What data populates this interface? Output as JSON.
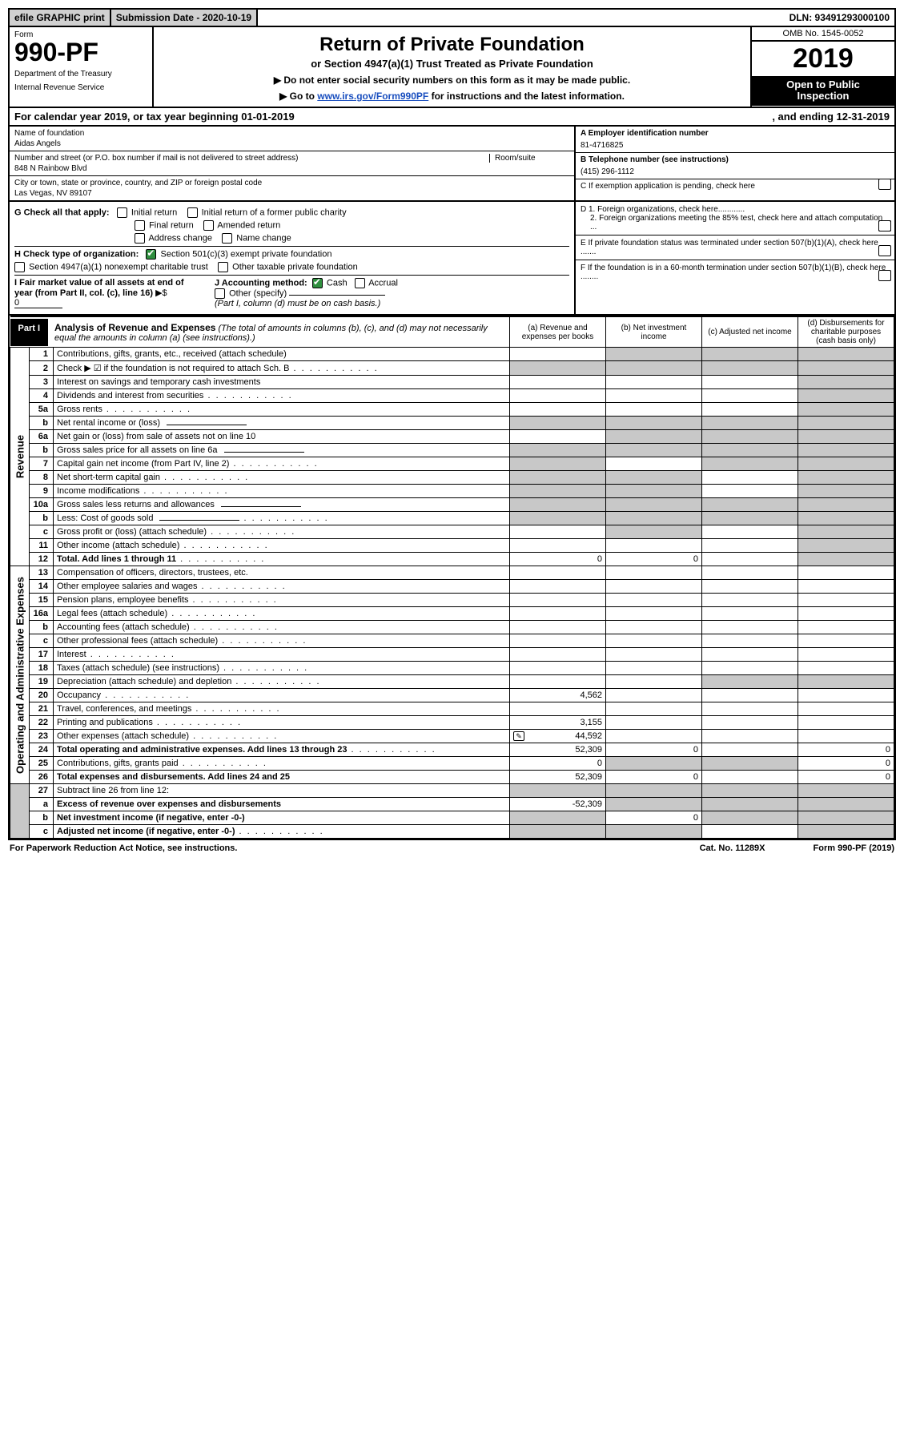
{
  "colors": {
    "text": "#000000",
    "bg": "#ffffff",
    "shade": "#c8c8c8",
    "header_shade": "#d0d0d0",
    "black": "#000000",
    "link": "#1a4fbf",
    "check_green": "#2f8f3f"
  },
  "top_strip": {
    "efile": "efile GRAPHIC print",
    "submission": "Submission Date - 2020-10-19",
    "dln": "DLN: 93491293000100"
  },
  "header": {
    "form_label": "Form",
    "form_number": "990-PF",
    "dept1": "Department of the Treasury",
    "dept2": "Internal Revenue Service",
    "title": "Return of Private Foundation",
    "subtitle": "or Section 4947(a)(1) Trust Treated as Private Foundation",
    "note1": "▶ Do not enter social security numbers on this form as it may be made public.",
    "note2_pre": "▶ Go to ",
    "note2_link": "www.irs.gov/Form990PF",
    "note2_post": " for instructions and the latest information.",
    "omb": "OMB No. 1545-0052",
    "year": "2019",
    "open1": "Open to Public",
    "open2": "Inspection"
  },
  "calyear": {
    "left": "For calendar year 2019, or tax year beginning 01-01-2019",
    "right": ", and ending 12-31-2019"
  },
  "info": {
    "name_label": "Name of foundation",
    "name": "Aidas Angels",
    "addr_label": "Number and street (or P.O. box number if mail is not delivered to street address)",
    "addr": "848 N Rainbow Blvd",
    "room_label": "Room/suite",
    "city_label": "City or town, state or province, country, and ZIP or foreign postal code",
    "city": "Las Vegas, NV  89107",
    "A_label": "A Employer identification number",
    "A": "81-4716825",
    "B_label": "B Telephone number (see instructions)",
    "B": "(415) 296-1112",
    "C": "C If exemption application is pending, check here",
    "D1": "D 1. Foreign organizations, check here............",
    "D2": "2. Foreign organizations meeting the 85% test, check here and attach computation ...",
    "E": "E  If private foundation status was terminated under section 507(b)(1)(A), check here .......",
    "F": "F  If the foundation is in a 60-month termination under section 507(b)(1)(B), check here ........"
  },
  "G": {
    "label": "G Check all that apply:",
    "initial": "Initial return",
    "initial_former": "Initial return of a former public charity",
    "final": "Final return",
    "amended": "Amended return",
    "addr_change": "Address change",
    "name_change": "Name change"
  },
  "H": {
    "label": "H Check type of organization:",
    "s501": "Section 501(c)(3) exempt private foundation",
    "s501_checked": true,
    "s4947": "Section 4947(a)(1) nonexempt charitable trust",
    "other_tax": "Other taxable private foundation"
  },
  "I": {
    "label": "I Fair market value of all assets at end of year (from Part II, col. (c), line 16)",
    "val_prefix": "▶$",
    "val": "0"
  },
  "J": {
    "label": "J Accounting method:",
    "cash": "Cash",
    "cash_checked": true,
    "accrual": "Accrual",
    "other": "Other (specify)",
    "note": "(Part I, column (d) must be on cash basis.)"
  },
  "part1": {
    "label": "Part I",
    "title": "Analysis of Revenue and Expenses",
    "note": "(The total of amounts in columns (b), (c), and (d) may not necessarily equal the amounts in column (a) (see instructions).)",
    "col_a": "(a)  Revenue and expenses per books",
    "col_b": "(b)  Net investment income",
    "col_c": "(c)  Adjusted net income",
    "col_d": "(d)  Disbursements for charitable purposes (cash basis only)"
  },
  "sections": {
    "revenue": "Revenue",
    "expenses": "Operating and Administrative Expenses"
  },
  "rows": [
    {
      "n": "1",
      "d": "Contributions, gifts, grants, etc., received (attach schedule)",
      "a": "",
      "b": "s",
      "c": "s",
      "dd": "s"
    },
    {
      "n": "2",
      "d": "Check ▶ ☑ if the foundation is not required to attach Sch. B",
      "a": "s",
      "b": "s",
      "c": "s",
      "dd": "s",
      "dots": true
    },
    {
      "n": "3",
      "d": "Interest on savings and temporary cash investments",
      "a": "",
      "b": "",
      "c": "",
      "dd": "s"
    },
    {
      "n": "4",
      "d": "Dividends and interest from securities",
      "a": "",
      "b": "",
      "c": "",
      "dd": "s",
      "dots": true
    },
    {
      "n": "5a",
      "d": "Gross rents",
      "a": "",
      "b": "",
      "c": "",
      "dd": "s",
      "dots": true
    },
    {
      "n": "b",
      "d": "Net rental income or (loss)",
      "a": "s",
      "b": "s",
      "c": "s",
      "dd": "s",
      "line": true
    },
    {
      "n": "6a",
      "d": "Net gain or (loss) from sale of assets not on line 10",
      "a": "",
      "b": "s",
      "c": "s",
      "dd": "s"
    },
    {
      "n": "b",
      "d": "Gross sales price for all assets on line 6a",
      "a": "s",
      "b": "s",
      "c": "s",
      "dd": "s",
      "line": true
    },
    {
      "n": "7",
      "d": "Capital gain net income (from Part IV, line 2)",
      "a": "s",
      "b": "",
      "c": "s",
      "dd": "s",
      "dots": true
    },
    {
      "n": "8",
      "d": "Net short-term capital gain",
      "a": "s",
      "b": "s",
      "c": "",
      "dd": "s",
      "dots": true
    },
    {
      "n": "9",
      "d": "Income modifications",
      "a": "s",
      "b": "s",
      "c": "",
      "dd": "s",
      "dots": true
    },
    {
      "n": "10a",
      "d": "Gross sales less returns and allowances",
      "a": "s",
      "b": "s",
      "c": "s",
      "dd": "s",
      "line": true
    },
    {
      "n": "b",
      "d": "Less: Cost of goods sold",
      "a": "s",
      "b": "s",
      "c": "s",
      "dd": "s",
      "line": true,
      "dots": true
    },
    {
      "n": "c",
      "d": "Gross profit or (loss) (attach schedule)",
      "a": "",
      "b": "s",
      "c": "",
      "dd": "s",
      "dots": true
    },
    {
      "n": "11",
      "d": "Other income (attach schedule)",
      "a": "",
      "b": "",
      "c": "",
      "dd": "s",
      "dots": true
    },
    {
      "n": "12",
      "d": "Total. Add lines 1 through 11",
      "a": "0",
      "b": "0",
      "c": "",
      "dd": "s",
      "bold": true,
      "dots": true
    }
  ],
  "exp_rows": [
    {
      "n": "13",
      "d": "Compensation of officers, directors, trustees, etc.",
      "a": "",
      "b": "",
      "c": "",
      "dd": ""
    },
    {
      "n": "14",
      "d": "Other employee salaries and wages",
      "a": "",
      "b": "",
      "c": "",
      "dd": "",
      "dots": true
    },
    {
      "n": "15",
      "d": "Pension plans, employee benefits",
      "a": "",
      "b": "",
      "c": "",
      "dd": "",
      "dots": true
    },
    {
      "n": "16a",
      "d": "Legal fees (attach schedule)",
      "a": "",
      "b": "",
      "c": "",
      "dd": "",
      "dots": true
    },
    {
      "n": "b",
      "d": "Accounting fees (attach schedule)",
      "a": "",
      "b": "",
      "c": "",
      "dd": "",
      "dots": true
    },
    {
      "n": "c",
      "d": "Other professional fees (attach schedule)",
      "a": "",
      "b": "",
      "c": "",
      "dd": "",
      "dots": true
    },
    {
      "n": "17",
      "d": "Interest",
      "a": "",
      "b": "",
      "c": "",
      "dd": "",
      "dots": true
    },
    {
      "n": "18",
      "d": "Taxes (attach schedule) (see instructions)",
      "a": "",
      "b": "",
      "c": "",
      "dd": "",
      "dots": true
    },
    {
      "n": "19",
      "d": "Depreciation (attach schedule) and depletion",
      "a": "",
      "b": "",
      "c": "s",
      "dd": "s",
      "dots": true
    },
    {
      "n": "20",
      "d": "Occupancy",
      "a": "4,562",
      "b": "",
      "c": "",
      "dd": "",
      "dots": true
    },
    {
      "n": "21",
      "d": "Travel, conferences, and meetings",
      "a": "",
      "b": "",
      "c": "",
      "dd": "",
      "dots": true
    },
    {
      "n": "22",
      "d": "Printing and publications",
      "a": "3,155",
      "b": "",
      "c": "",
      "dd": "",
      "dots": true
    },
    {
      "n": "23",
      "d": "Other expenses (attach schedule)",
      "a": "44,592",
      "b": "",
      "c": "",
      "dd": "",
      "dots": true,
      "icon": true
    },
    {
      "n": "24",
      "d": "Total operating and administrative expenses. Add lines 13 through 23",
      "a": "52,309",
      "b": "0",
      "c": "",
      "dd": "0",
      "bold": true,
      "dots": true
    },
    {
      "n": "25",
      "d": "Contributions, gifts, grants paid",
      "a": "0",
      "b": "s",
      "c": "s",
      "dd": "0",
      "dots": true
    },
    {
      "n": "26",
      "d": "Total expenses and disbursements. Add lines 24 and 25",
      "a": "52,309",
      "b": "0",
      "c": "",
      "dd": "0",
      "bold": true
    }
  ],
  "final_rows": [
    {
      "n": "27",
      "d": "Subtract line 26 from line 12:",
      "a": "s",
      "b": "s",
      "c": "s",
      "dd": "s"
    },
    {
      "n": "a",
      "d": "Excess of revenue over expenses and disbursements",
      "a": "-52,309",
      "b": "s",
      "c": "s",
      "dd": "s",
      "bold": true
    },
    {
      "n": "b",
      "d": "Net investment income (if negative, enter -0-)",
      "a": "s",
      "b": "0",
      "c": "s",
      "dd": "s",
      "bold": true
    },
    {
      "n": "c",
      "d": "Adjusted net income (if negative, enter -0-)",
      "a": "s",
      "b": "s",
      "c": "",
      "dd": "s",
      "bold": true,
      "dots": true
    }
  ],
  "footer": {
    "left": "For Paperwork Reduction Act Notice, see instructions.",
    "mid": "Cat. No. 11289X",
    "right": "Form 990-PF (2019)"
  }
}
